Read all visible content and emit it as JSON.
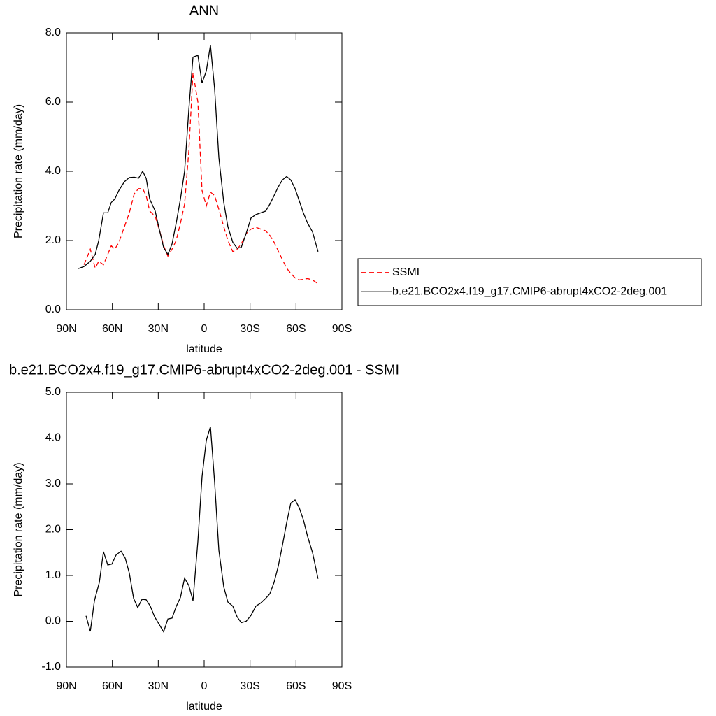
{
  "chart_data": [
    {
      "type": "line",
      "title": "ANN",
      "xlabel": "latitude",
      "ylabel": "Precipitation rate (mm/day)",
      "xlim": [
        90,
        -90
      ],
      "xticks": [
        {
          "value": 90,
          "label": "90N"
        },
        {
          "value": 60,
          "label": "60N"
        },
        {
          "value": 30,
          "label": "30N"
        },
        0,
        {
          "value": -30,
          "label": "30S"
        },
        {
          "value": -60,
          "label": "60S"
        },
        {
          "value": -90,
          "label": "90S"
        }
      ],
      "ylim": [
        0,
        8
      ],
      "yticks": [
        {
          "value": 0,
          "label": "0.0"
        },
        {
          "value": 2,
          "label": "2.0"
        },
        {
          "value": 4,
          "label": "4.0"
        },
        {
          "value": 6,
          "label": "6.0"
        },
        {
          "value": 8,
          "label": "8.0"
        }
      ],
      "legend": "right",
      "x": [
        82.2,
        78.5,
        74.4,
        71.2,
        68.9,
        65.8,
        63.0,
        60.7,
        58.4,
        55.7,
        52.1,
        48.9,
        45.7,
        42.9,
        40.2,
        37.9,
        35.6,
        32.0,
        29.2,
        26.5,
        23.7,
        21.0,
        18.3,
        15.5,
        12.8,
        10.0,
        7.3,
        4.1,
        1.4,
        -1.4,
        -4.1,
        -6.8,
        -9.6,
        -12.8,
        -15.5,
        -18.7,
        -21.5,
        -24.2,
        -27.4,
        -30.6,
        -33.8,
        -37.0,
        -40.2,
        -42.9,
        -45.7,
        -48.4,
        -51.1,
        -53.9,
        -56.6,
        -59.4,
        -62.1,
        -64.8,
        -67.6,
        -70.8,
        -74.4
      ],
      "series": [
        {
          "name": "SSMI",
          "color": "#ff0000",
          "linestyle": "dashed",
          "values": [
            null,
            1.3,
            1.75,
            1.2,
            1.4,
            1.3,
            1.6,
            1.85,
            1.75,
            1.95,
            2.4,
            2.8,
            3.35,
            3.5,
            3.5,
            3.3,
            2.85,
            2.7,
            2.3,
            1.85,
            1.55,
            1.75,
            2.0,
            2.5,
            3.05,
            4.6,
            6.85,
            6.0,
            3.45,
            3.0,
            3.4,
            3.3,
            2.9,
            2.4,
            2.0,
            1.68,
            1.75,
            1.9,
            2.2,
            2.33,
            2.38,
            2.33,
            2.28,
            2.15,
            1.95,
            1.7,
            1.45,
            1.2,
            1.05,
            0.92,
            0.86,
            0.88,
            0.9,
            0.86,
            0.75
          ]
        },
        {
          "name": "b.e21.BCO2x4.f19_g17.CMIP6-abrupt4xCO2-2deg.001",
          "color": "#000000",
          "linestyle": "solid",
          "values": [
            1.19,
            1.25,
            1.4,
            1.6,
            2.0,
            2.8,
            2.8,
            3.1,
            3.2,
            3.45,
            3.7,
            3.82,
            3.83,
            3.8,
            4.0,
            3.8,
            3.2,
            2.85,
            2.3,
            1.8,
            1.6,
            1.9,
            2.5,
            3.2,
            4.0,
            5.8,
            7.3,
            7.35,
            6.55,
            6.9,
            7.65,
            6.4,
            4.4,
            3.1,
            2.4,
            1.95,
            1.78,
            1.8,
            2.2,
            2.65,
            2.75,
            2.8,
            2.85,
            3.05,
            3.3,
            3.55,
            3.75,
            3.85,
            3.75,
            3.5,
            3.15,
            2.8,
            2.5,
            2.25,
            1.68
          ]
        }
      ]
    },
    {
      "type": "line",
      "title": "b.e21.BCO2x4.f19_g17.CMIP6-abrupt4xCO2-2deg.001 - SSMI",
      "xlabel": "latitude",
      "ylabel": "Precipitation rate (mm/day)",
      "xlim": [
        90,
        -90
      ],
      "xticks": [
        {
          "value": 90,
          "label": "90N"
        },
        {
          "value": 60,
          "label": "60N"
        },
        {
          "value": 30,
          "label": "30N"
        },
        0,
        {
          "value": -30,
          "label": "30S"
        },
        {
          "value": -60,
          "label": "60S"
        },
        {
          "value": -90,
          "label": "90S"
        }
      ],
      "ylim": [
        -1,
        5
      ],
      "yticks": [
        {
          "value": -1,
          "label": "-1.0"
        },
        {
          "value": 0,
          "label": "0.0"
        },
        {
          "value": 1,
          "label": "1.0"
        },
        {
          "value": 2,
          "label": "2.0"
        },
        {
          "value": 3,
          "label": "3.0"
        },
        {
          "value": 4,
          "label": "4.0"
        },
        {
          "value": 5,
          "label": "5.0"
        }
      ],
      "x": [
        77.2,
        74.4,
        71.7,
        68.5,
        65.8,
        63.0,
        60.3,
        57.5,
        54.3,
        51.6,
        48.9,
        46.1,
        43.4,
        40.6,
        37.9,
        35.2,
        32.4,
        29.2,
        26.5,
        23.7,
        21.0,
        18.3,
        15.5,
        12.8,
        10.0,
        7.3,
        4.1,
        1.4,
        -1.4,
        -4.1,
        -6.8,
        -9.6,
        -12.8,
        -15.5,
        -18.7,
        -21.5,
        -24.2,
        -27.4,
        -30.6,
        -33.8,
        -37.0,
        -40.2,
        -42.9,
        -45.7,
        -48.4,
        -51.1,
        -53.9,
        -56.6,
        -59.4,
        -62.1,
        -64.8,
        -67.6,
        -70.8,
        -74.4
      ],
      "series": [
        {
          "color": "#000000",
          "linestyle": "solid",
          "values": [
            0.12,
            -0.22,
            0.45,
            0.85,
            1.52,
            1.23,
            1.25,
            1.45,
            1.53,
            1.38,
            1.05,
            0.5,
            0.3,
            0.48,
            0.47,
            0.33,
            0.1,
            -0.08,
            -0.23,
            0.05,
            0.07,
            0.32,
            0.52,
            0.94,
            0.78,
            0.45,
            1.75,
            3.15,
            3.95,
            4.25,
            3.05,
            1.55,
            0.75,
            0.42,
            0.33,
            0.1,
            -0.03,
            0.0,
            0.13,
            0.33,
            0.4,
            0.5,
            0.6,
            0.85,
            1.2,
            1.65,
            2.15,
            2.58,
            2.65,
            2.48,
            2.22,
            1.85,
            1.5,
            0.93
          ]
        }
      ]
    }
  ]
}
